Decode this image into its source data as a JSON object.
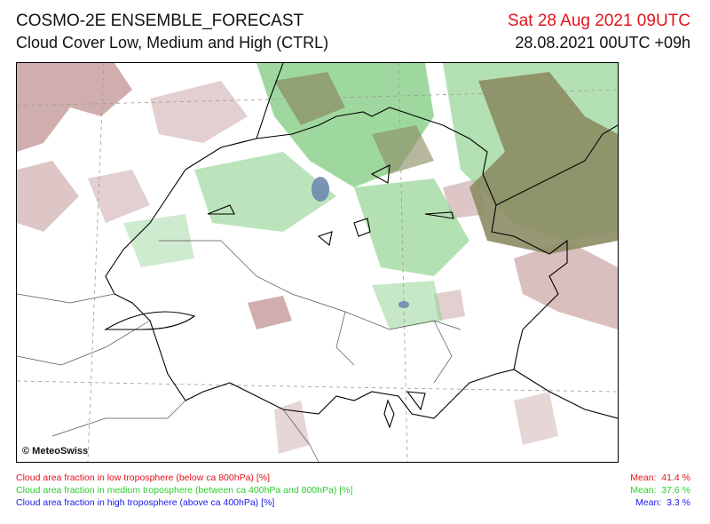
{
  "header": {
    "title": "COSMO-2E ENSEMBLE_FORECAST",
    "subtitle": "Cloud Cover Low, Medium and High (CTRL)",
    "valid_time": "Sat 28 Aug 2021 09UTC",
    "run_info": "28.08.2021 00UTC +09h"
  },
  "map": {
    "copyright": "© MeteoSwiss",
    "colors": {
      "low": "#c8a0a0",
      "medium": "#8fd28f",
      "low_medium": "#8c8c64",
      "high": "#6f88b0"
    }
  },
  "legend": [
    {
      "label": "Cloud area fraction in low troposphere (below ca 800hPa) [%]",
      "mean_label": "Mean:",
      "mean_value": "41.4 %",
      "color": "#e3131b"
    },
    {
      "label": "Cloud area fraction in medium troposphere (between ca 400hPa and 800hPa) [%]",
      "mean_label": "Mean:",
      "mean_value": "37.6 %",
      "color": "#2ecc2e"
    },
    {
      "label": "Cloud area fraction in high troposphere (above ca 400hPa) [%]",
      "mean_label": "Mean:",
      "mean_value": "3.3 %",
      "color": "#1a1ae6"
    }
  ]
}
